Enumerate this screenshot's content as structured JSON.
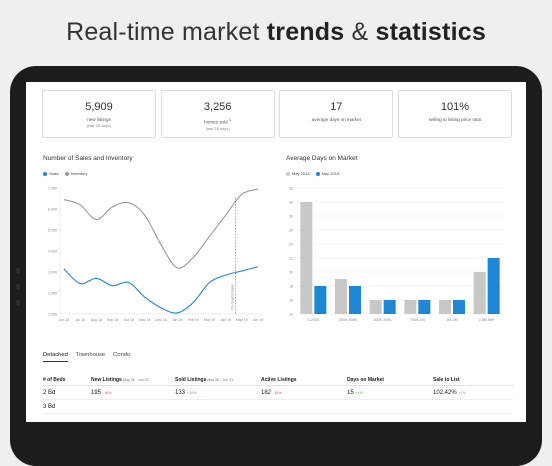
{
  "headline": {
    "regular": "Real-time market ",
    "bold1": "trends",
    "amp": " & ",
    "bold2": "statistics"
  },
  "stats": [
    {
      "value": "5,909",
      "label": "new listings",
      "sub": "(last 28 days)"
    },
    {
      "value": "3,256",
      "label": "homes sold",
      "sup": "1",
      "sub": "(last 28 days)"
    },
    {
      "value": "17",
      "label": "average days on market",
      "sub": ""
    },
    {
      "value": "101%",
      "label": "selling to listing price ratio",
      "sub": ""
    }
  ],
  "sales_chart": {
    "title": "Number of Sales and Inventory",
    "legend": [
      {
        "name": "Sales",
        "color": "#1e88d6"
      },
      {
        "name": "Inventory",
        "color": "#999999"
      }
    ],
    "annotation": "Pre-Season Sales"
  },
  "dom_chart": {
    "title": "Average Days on Market",
    "legend": [
      {
        "name": "May 2018",
        "color": "#c8c8c8"
      },
      {
        "name": "May 2019",
        "color": "#1e88d6"
      }
    ]
  },
  "chart_data": [
    {
      "type": "line",
      "title": "Number of Sales and Inventory",
      "x": [
        "Jun 18",
        "Jul 18",
        "Aug 18",
        "Sep 18",
        "Oct 18",
        "Nov 18",
        "Dec 18",
        "Jan 19",
        "Feb 19",
        "Mar 19",
        "Apr 19",
        "May 19",
        "Jun 19"
      ],
      "y_ticks": [
        "1,000",
        "2,000",
        "3,000",
        "4,000",
        "5,000",
        "6,000",
        "7,000"
      ],
      "ylim": [
        1000,
        7000
      ],
      "series": [
        {
          "name": "Inventory",
          "color": "#999999",
          "values": [
            6450,
            6200,
            5500,
            6100,
            6300,
            5700,
            4300,
            3200,
            3700,
            4700,
            5700,
            6700,
            6950
          ]
        },
        {
          "name": "Sales",
          "color": "#1e88d6",
          "values": [
            3150,
            2450,
            2700,
            2350,
            2500,
            1800,
            1300,
            1050,
            1550,
            2500,
            2850,
            3050,
            3250
          ]
        }
      ]
    },
    {
      "type": "bar",
      "title": "Average Days on Market",
      "categories": [
        "0-200K",
        "200K-500K",
        "500K-700K",
        "700K-1M",
        "1M-2M",
        "2-5M 5M+"
      ],
      "y_ticks": [
        "14",
        "16",
        "18",
        "20",
        "22",
        "24",
        "26",
        "28",
        "30",
        "32"
      ],
      "ylim": [
        14,
        32
      ],
      "series": [
        {
          "name": "May 2018",
          "color": "#c8c8c8",
          "values": [
            30,
            19,
            16,
            16,
            16,
            20
          ]
        },
        {
          "name": "May 2019",
          "color": "#1e88d6",
          "values": [
            18,
            18,
            16,
            16,
            16,
            22
          ]
        }
      ]
    }
  ],
  "tabs": [
    "Detached",
    "Townhouse",
    "Condo"
  ],
  "table": {
    "headers": [
      {
        "label": "# of Beds",
        "sub": ""
      },
      {
        "label": "New Listings",
        "sub": "May 26 - Jun 23"
      },
      {
        "label": "Sold Listings",
        "sub": "May 26 - Jun 23"
      },
      {
        "label": "Active Listings",
        "sub": ""
      },
      {
        "label": "Days on Market",
        "sub": ""
      },
      {
        "label": "Sale to List",
        "sub": ""
      }
    ],
    "rows": [
      {
        "beds": "2 Bd",
        "new": "195",
        "new_pct": "-16%",
        "sold": "133",
        "sold_pct": "+16%",
        "active": "182",
        "active_pct": "-16%",
        "dom": "15",
        "dom_pct": "+1%",
        "ratio": "102.42%",
        "ratio_pct": "+1%"
      },
      {
        "beds": "3 Bd",
        "new": "",
        "new_pct": "",
        "sold": "",
        "sold_pct": "",
        "active": "",
        "active_pct": "",
        "dom": "",
        "dom_pct": "",
        "ratio": "",
        "ratio_pct": ""
      }
    ]
  }
}
